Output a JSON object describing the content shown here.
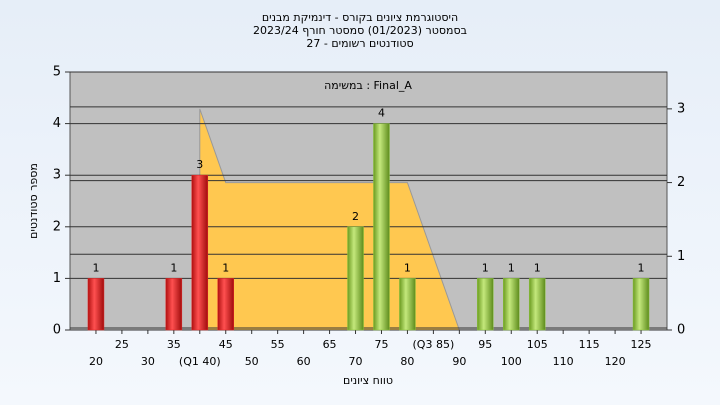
{
  "chart_data": {
    "type": "bar",
    "title": [
      "היסטוגרמת ציונים בקורס - דינמיקת מבנים",
      "בסמסטר (01/2023) סמסטר חורף 2023/24",
      "סטודנטים רשומים - 27"
    ],
    "annotation": "במשימה : Final_A",
    "x_label": "טווח ציונים",
    "y_label": "מספר סטודנטים",
    "series": [
      {
        "color": "#e02828",
        "x": [
          20,
          35,
          40,
          45
        ],
        "values": [
          1,
          1,
          3,
          1
        ]
      },
      {
        "color": "#8cc63f",
        "x": [
          70,
          75,
          80,
          95,
          100,
          105,
          125
        ],
        "values": [
          2,
          4,
          1,
          1,
          1,
          1,
          1
        ]
      }
    ],
    "area": {
      "color": "#ffc850",
      "axis": "y2",
      "x": [
        40,
        40,
        45,
        80,
        90
      ],
      "values": [
        0,
        3,
        2,
        2,
        0
      ]
    },
    "xlim": [
      15,
      130
    ],
    "xticks": [
      20,
      25,
      30,
      35,
      {
        "value": 40,
        "label": "(Q1 40)"
      },
      45,
      50,
      55,
      60,
      65,
      70,
      75,
      80,
      {
        "value": 85,
        "label": "(Q3 85)"
      },
      90,
      95,
      100,
      105,
      110,
      115,
      120,
      125
    ],
    "ylim": [
      0,
      5
    ],
    "yticks": [
      0,
      1,
      2,
      3,
      4,
      5
    ],
    "y2lim": [
      0,
      3.5
    ],
    "y2ticks": [
      0,
      1,
      2,
      3
    ],
    "grid": true
  }
}
